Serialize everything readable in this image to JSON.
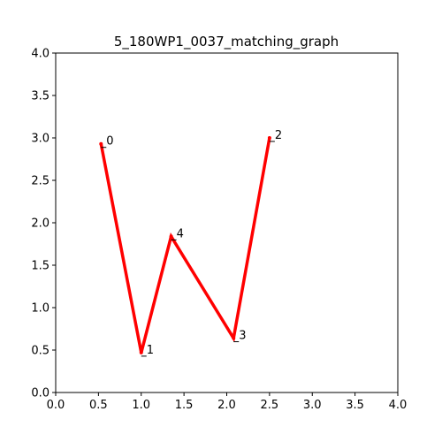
{
  "chart_data": {
    "type": "line",
    "title": "5_180WP1_0037_matching_graph",
    "xlabel": "",
    "ylabel": "",
    "xlim": [
      0,
      4
    ],
    "ylim": [
      0,
      4
    ],
    "grid": false,
    "xticks": [
      "0.0",
      "0.5",
      "1.0",
      "1.5",
      "2.0",
      "2.5",
      "3.0",
      "3.5",
      "4.0"
    ],
    "yticks": [
      "0.0",
      "0.5",
      "1.0",
      "1.5",
      "2.0",
      "2.5",
      "3.0",
      "3.5",
      "4.0"
    ],
    "line_color": "#ff0000",
    "nodes": [
      {
        "label": "0",
        "x": 0.53,
        "y": 2.93
      },
      {
        "label": "1",
        "x": 1.0,
        "y": 0.47
      },
      {
        "label": "4",
        "x": 1.35,
        "y": 1.84
      },
      {
        "label": "3",
        "x": 2.08,
        "y": 0.64
      },
      {
        "label": "2",
        "x": 2.5,
        "y": 3.0
      }
    ],
    "path_order": [
      "0",
      "1",
      "4",
      "3",
      "2"
    ]
  }
}
